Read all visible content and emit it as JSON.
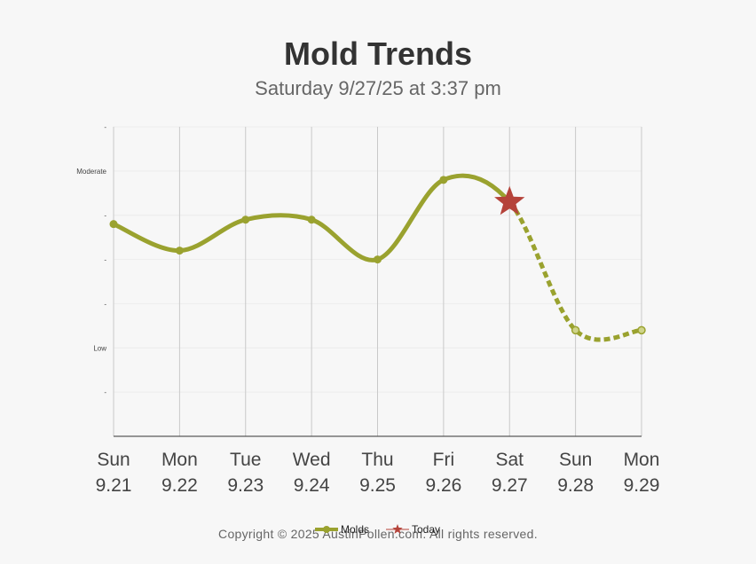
{
  "chart_data": {
    "type": "line",
    "title": "Mold Trends",
    "subtitle": "Saturday 9/27/25 at 3:37 pm",
    "x": [
      {
        "day": "Sun",
        "date": "9.21"
      },
      {
        "day": "Mon",
        "date": "9.22"
      },
      {
        "day": "Tue",
        "date": "9.23"
      },
      {
        "day": "Wed",
        "date": "9.24"
      },
      {
        "day": "Thu",
        "date": "9.25"
      },
      {
        "day": "Fri",
        "date": "9.26"
      },
      {
        "day": "Sat",
        "date": "9.27"
      },
      {
        "day": "Sun",
        "date": "9.28"
      },
      {
        "day": "Mon",
        "date": "9.29"
      }
    ],
    "y_tick_labels": [
      "-",
      "Low",
      "-",
      "-",
      "-",
      "Moderate",
      "-"
    ],
    "ylim": [
      0,
      7
    ],
    "series": [
      {
        "name": "Molds",
        "color": "#9aa22f",
        "values": [
          4.8,
          4.2,
          4.9,
          4.9,
          4.0,
          5.8,
          5.3,
          2.4,
          2.4
        ],
        "forecast_from_index": 6
      }
    ],
    "today": {
      "name": "Today",
      "index": 6,
      "value": 5.3,
      "color": "#b5433a",
      "marker": "star-icon"
    },
    "grid": true,
    "legend": "bottom"
  },
  "footer": {
    "copyright": "Copyright © 2025 AustinPollen.com.  All rights reserved."
  }
}
